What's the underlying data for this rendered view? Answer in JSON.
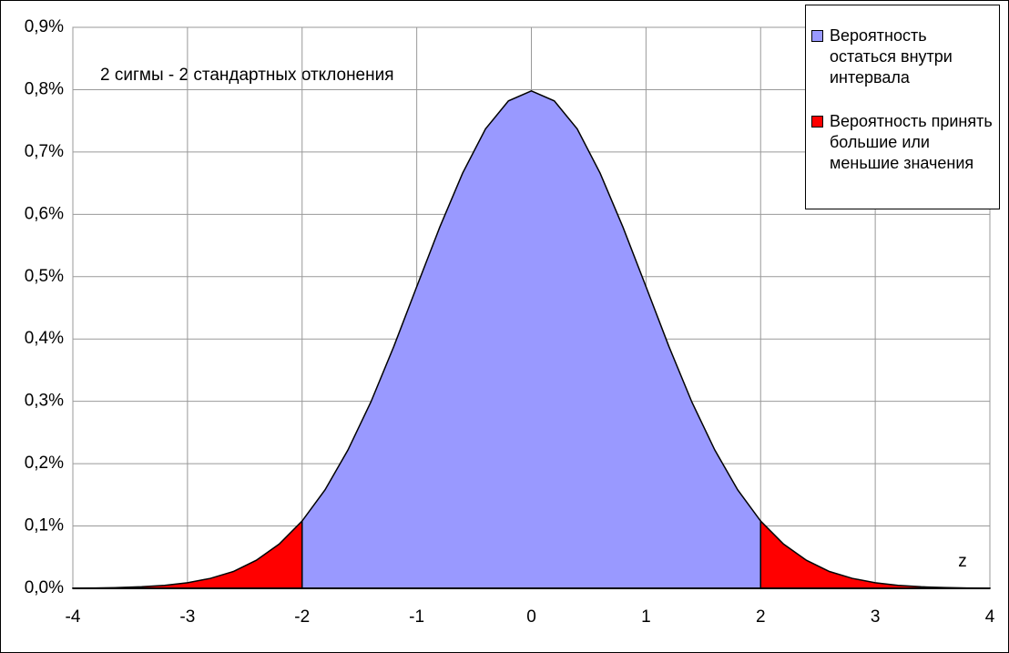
{
  "chart_data": {
    "type": "area",
    "annotation": "2 сигмы - 2 стандартных отклонения",
    "x_label": "z",
    "x": [
      -4,
      -3.8,
      -3.6,
      -3.4,
      -3.2,
      -3,
      -2.8,
      -2.6,
      -2.4,
      -2.2,
      -2,
      -1.8,
      -1.6,
      -1.4,
      -1.2,
      -1,
      -0.8,
      -0.6,
      -0.4,
      -0.2,
      0,
      0.2,
      0.4,
      0.6,
      0.8,
      1,
      1.2,
      1.4,
      1.6,
      1.8,
      2,
      2.2,
      2.4,
      2.6,
      2.8,
      3,
      3.2,
      3.4,
      3.6,
      3.8,
      4
    ],
    "series": [
      {
        "name": "Вероятность остаться внутри интервала",
        "color": "#9999ff",
        "values": [
          null,
          null,
          null,
          null,
          null,
          null,
          null,
          null,
          null,
          null,
          0.108,
          0.158,
          0.222,
          0.299,
          0.388,
          0.484,
          0.579,
          0.666,
          0.737,
          0.782,
          0.798,
          0.782,
          0.737,
          0.666,
          0.579,
          0.484,
          0.388,
          0.299,
          0.222,
          0.158,
          0.108,
          null,
          null,
          null,
          null,
          null,
          null,
          null,
          null,
          null,
          null
        ]
      },
      {
        "name": "Вероятность принять большие или меньшие значения",
        "color": "#ff0000",
        "values": [
          0.0003,
          0.0006,
          0.0012,
          0.0025,
          0.0048,
          0.0089,
          0.016,
          0.027,
          0.045,
          0.071,
          0.108,
          null,
          null,
          null,
          null,
          null,
          null,
          null,
          null,
          null,
          null,
          null,
          null,
          null,
          null,
          null,
          null,
          null,
          null,
          null,
          0.108,
          0.071,
          0.045,
          0.027,
          0.016,
          0.0089,
          0.0048,
          0.0025,
          0.0012,
          0.0006,
          0.0003
        ]
      }
    ],
    "xlim": [
      -4,
      4
    ],
    "xticks": [
      -4,
      -3,
      -2,
      -1,
      0,
      1,
      2,
      3,
      4
    ],
    "ylim": [
      0,
      0.9
    ],
    "yticks": [
      {
        "value": 0,
        "label": "0,0%"
      },
      {
        "value": 0.1,
        "label": "0,1%"
      },
      {
        "value": 0.2,
        "label": "0,2%"
      },
      {
        "value": 0.3,
        "label": "0,3%"
      },
      {
        "value": 0.4,
        "label": "0,4%"
      },
      {
        "value": 0.5,
        "label": "0,5%"
      },
      {
        "value": 0.6,
        "label": "0,6%"
      },
      {
        "value": 0.7,
        "label": "0,7%"
      },
      {
        "value": 0.8,
        "label": "0,8%"
      },
      {
        "value": 0.9,
        "label": "0,9%"
      }
    ],
    "grid": true,
    "legend": "top-right"
  }
}
